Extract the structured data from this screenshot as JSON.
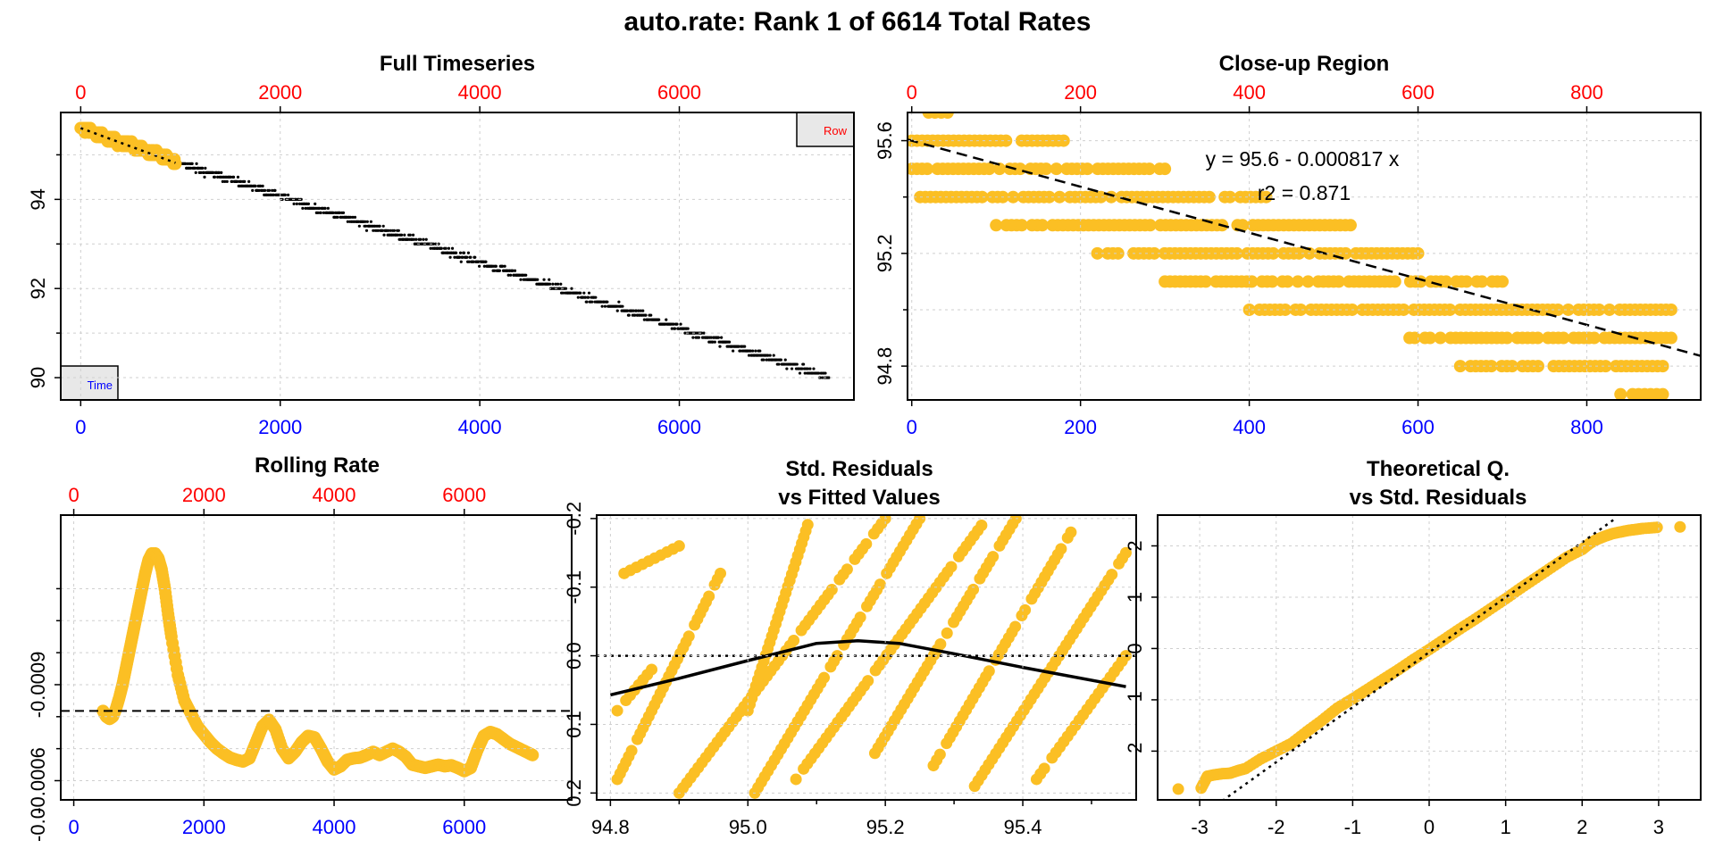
{
  "title": "auto.rate: Rank 1 of 6614 Total Rates",
  "colors": {
    "points": "#FBBF24",
    "axis_bottom": "#0000FF",
    "axis_top": "#FF0000",
    "frame": "#000000",
    "grid": "#CFCFCF",
    "label_box_fill": "#E8E8E8"
  },
  "chart_data": [
    {
      "id": "full",
      "type": "scatter",
      "title": "Full Timeseries",
      "x_axis": {
        "range": [
          -200,
          7750
        ],
        "ticks": [
          0,
          2000,
          4000,
          6000
        ],
        "color": "blue"
      },
      "x2_axis": {
        "range": [
          -200,
          7750
        ],
        "ticks": [
          0,
          2000,
          4000,
          6000
        ],
        "color": "red"
      },
      "y_axis": {
        "range": [
          89.5,
          95.95
        ],
        "ticks": [
          90,
          92,
          94
        ],
        "minor_ticks": [
          91,
          93,
          95
        ]
      },
      "series": [
        {
          "kind": "points",
          "color": "black",
          "x_range": [
            950,
            7500
          ],
          "y_start": 94.85,
          "y_end": 90.0,
          "noise": 0.13
        },
        {
          "kind": "points",
          "color": "orange",
          "x_range": [
            0,
            950
          ],
          "y_start": 95.6,
          "y_end": 94.85,
          "noise": 0.1
        }
      ],
      "fit_line": {
        "x": [
          0,
          950
        ],
        "y": [
          95.6,
          94.82
        ],
        "style": "dotted"
      },
      "corner_labels": {
        "top_right": "Row",
        "bottom_left": "Time"
      },
      "grid": true
    },
    {
      "id": "closeup",
      "type": "scatter",
      "title": "Close-up Region",
      "x_axis": {
        "range": [
          -5,
          935
        ],
        "ticks": [
          0,
          200,
          400,
          600,
          800
        ],
        "color": "blue"
      },
      "x2_axis": {
        "range": [
          -5,
          935
        ],
        "ticks": [
          0,
          200,
          400,
          600,
          800
        ],
        "color": "red"
      },
      "y_axis": {
        "range": [
          94.68,
          95.7
        ],
        "ticks": [
          94.8,
          95.2,
          95.6
        ],
        "minor_ticks": [
          95.0,
          95.4
        ]
      },
      "levels": [
        {
          "y": 95.7,
          "x": [
            20,
            50
          ]
        },
        {
          "y": 95.6,
          "x": [
            0,
            180
          ]
        },
        {
          "y": 95.5,
          "x": [
            0,
            300
          ]
        },
        {
          "y": 95.4,
          "x": [
            10,
            420
          ]
        },
        {
          "y": 95.3,
          "x": [
            100,
            520
          ]
        },
        {
          "y": 95.2,
          "x": [
            220,
            600
          ]
        },
        {
          "y": 95.1,
          "x": [
            300,
            700
          ]
        },
        {
          "y": 95.0,
          "x": [
            400,
            900
          ]
        },
        {
          "y": 94.9,
          "x": [
            590,
            900
          ]
        },
        {
          "y": 94.8,
          "x": [
            650,
            890
          ]
        },
        {
          "y": 94.7,
          "x": [
            840,
            890
          ]
        }
      ],
      "fit_line": {
        "intercept": 95.6,
        "slope": -0.000817,
        "style": "dashed"
      },
      "annotations": [
        "y = 95.6 - 0.000817 x",
        "r2 = 0.871"
      ],
      "grid": true
    },
    {
      "id": "rolling",
      "type": "line",
      "title": "Rolling Rate",
      "x_axis": {
        "range": [
          -200,
          7650
        ],
        "ticks": [
          0,
          2000,
          4000,
          6000
        ],
        "color": "blue"
      },
      "x2_axis": {
        "range": [
          -200,
          7650
        ],
        "ticks": [
          0,
          2000,
          4000,
          6000
        ],
        "color": "red"
      },
      "y_axis": {
        "range": [
          -0.00143,
          -0.00054
        ],
        "reversed": true,
        "ticks": [
          -0.0009,
          -0.0006
        ],
        "tick_labels": [
          "-0.0009",
          "-0.0006"
        ],
        "minor_ticks": [
          -0.0012,
          -0.0011,
          -0.001,
          -0.0008,
          -0.0007
        ],
        "bottom_label": "-0.0"
      },
      "x": [
        450,
        500,
        550,
        600,
        650,
        700,
        750,
        800,
        850,
        900,
        950,
        1000,
        1050,
        1100,
        1150,
        1200,
        1250,
        1300,
        1350,
        1400,
        1450,
        1500,
        1600,
        1700,
        1800,
        1900,
        2000,
        2100,
        2200,
        2300,
        2400,
        2500,
        2600,
        2700,
        2800,
        2900,
        3000,
        3100,
        3200,
        3300,
        3400,
        3500,
        3600,
        3700,
        3800,
        3900,
        4000,
        4100,
        4200,
        4300,
        4400,
        4500,
        4600,
        4700,
        4800,
        4900,
        5000,
        5100,
        5200,
        5300,
        5400,
        5500,
        5600,
        5700,
        5800,
        5900,
        6000,
        6100,
        6200,
        6300,
        6400,
        6500,
        6600,
        6700,
        6800,
        6900,
        7000,
        7050
      ],
      "values": [
        -0.000818,
        -0.0008,
        -0.000793,
        -0.0008,
        -0.000825,
        -0.00086,
        -0.0009,
        -0.00095,
        -0.001,
        -0.00105,
        -0.0011,
        -0.00115,
        -0.0012,
        -0.00125,
        -0.00129,
        -0.00131,
        -0.00131,
        -0.001295,
        -0.00126,
        -0.0012,
        -0.00112,
        -0.00105,
        -0.00093,
        -0.00085,
        -0.00081,
        -0.00077,
        -0.000745,
        -0.00072,
        -0.0007,
        -0.000685,
        -0.000672,
        -0.000665,
        -0.00066,
        -0.00067,
        -0.00072,
        -0.00077,
        -0.00079,
        -0.00076,
        -0.0007,
        -0.00067,
        -0.00069,
        -0.00072,
        -0.00074,
        -0.000735,
        -0.0007,
        -0.00066,
        -0.000635,
        -0.000645,
        -0.000665,
        -0.00067,
        -0.000672,
        -0.00068,
        -0.00069,
        -0.00068,
        -0.00069,
        -0.0007,
        -0.00069,
        -0.000675,
        -0.00065,
        -0.000645,
        -0.00064,
        -0.000645,
        -0.00065,
        -0.000645,
        -0.000648,
        -0.00064,
        -0.00063,
        -0.00064,
        -0.000695,
        -0.00074,
        -0.000752,
        -0.000745,
        -0.00073,
        -0.000715,
        -0.000705,
        -0.000695,
        -0.000685,
        -0.00068
      ],
      "reference_line": {
        "y": -0.000818,
        "style": "dashed"
      },
      "grid": true
    },
    {
      "id": "resid",
      "type": "scatter",
      "title": "Std. Residuals\nvs Fitted Values",
      "title_lines": [
        "Std. Residuals",
        "vs Fitted Values"
      ],
      "x_axis": {
        "range": [
          94.78,
          95.565
        ],
        "ticks": [
          94.8,
          95.0,
          95.2,
          95.4
        ],
        "tick_labels": [
          "94.8",
          "95.0",
          "95.2",
          "95.4"
        ],
        "minor_ticks": [
          94.9,
          95.1,
          95.3,
          95.5
        ]
      },
      "y_axis": {
        "range": [
          -0.205,
          0.21
        ],
        "reversed": true,
        "ticks": [
          -0.2,
          -0.1,
          0.0,
          0.1,
          0.2
        ],
        "tick_labels": [
          "-0.2",
          "-0.1",
          "0.0",
          "0.1",
          "0.2"
        ]
      },
      "bands": [
        {
          "x": [
            94.81,
            94.96
          ],
          "y": [
            0.18,
            -0.12
          ]
        },
        {
          "x": [
            94.81,
            94.86
          ],
          "y": [
            0.08,
            0.02
          ]
        },
        {
          "x": [
            94.82,
            94.9
          ],
          "y": [
            -0.12,
            -0.16
          ]
        },
        {
          "x": [
            94.9,
            95.2
          ],
          "y": [
            0.2,
            -0.2
          ]
        },
        {
          "x": [
            95.0,
            95.09
          ],
          "y": [
            0.08,
            -0.2
          ]
        },
        {
          "x": [
            95.01,
            95.25
          ],
          "y": [
            0.2,
            -0.2
          ]
        },
        {
          "x": [
            95.07,
            95.34
          ],
          "y": [
            0.18,
            -0.19
          ]
        },
        {
          "x": [
            95.18,
            95.39
          ],
          "y": [
            0.15,
            -0.2
          ]
        },
        {
          "x": [
            95.27,
            95.47
          ],
          "y": [
            0.16,
            -0.18
          ]
        },
        {
          "x": [
            95.33,
            95.55
          ],
          "y": [
            0.19,
            -0.15
          ]
        },
        {
          "x": [
            95.42,
            95.55
          ],
          "y": [
            0.18,
            0.0
          ]
        }
      ],
      "smooth": {
        "x": [
          94.8,
          94.9,
          95.0,
          95.1,
          95.16,
          95.22,
          95.3,
          95.4,
          95.55
        ],
        "y": [
          0.057,
          0.033,
          0.007,
          -0.018,
          -0.022,
          -0.018,
          -0.003,
          0.017,
          0.045
        ]
      },
      "reference_line": {
        "y": 0.0,
        "style": "dotted"
      },
      "grid": true
    },
    {
      "id": "qq",
      "type": "scatter",
      "title": "Theoretical Q.\nvs Std. Residuals",
      "title_lines": [
        "Theoretical Q.",
        "vs Std. Residuals"
      ],
      "x_axis": {
        "range": [
          -3.55,
          3.55
        ],
        "ticks": [
          -3,
          -2,
          -1,
          0,
          1,
          2,
          3
        ]
      },
      "y_axis": {
        "range": [
          -2.95,
          2.6
        ],
        "ticks": [
          -2,
          -1,
          0,
          1,
          2
        ]
      },
      "qq_points": {
        "x": [
          -3.28,
          -2.98,
          -2.9,
          -2.8,
          -2.7,
          -2.6,
          -2.5,
          -2.4,
          -2.2,
          -2.0,
          -1.8,
          -1.6,
          -1.4,
          -1.2,
          -1.0,
          -0.8,
          -0.6,
          -0.4,
          -0.2,
          0.0,
          0.2,
          0.4,
          0.6,
          0.8,
          1.0,
          1.2,
          1.4,
          1.6,
          1.8,
          2.0,
          2.1,
          2.2,
          2.3,
          2.4,
          2.5,
          2.6,
          2.7,
          2.8,
          2.98,
          3.28
        ],
        "y": [
          -2.74,
          -2.72,
          -2.49,
          -2.46,
          -2.44,
          -2.43,
          -2.38,
          -2.34,
          -2.15,
          -2.0,
          -1.85,
          -1.62,
          -1.4,
          -1.16,
          -0.98,
          -0.79,
          -0.6,
          -0.41,
          -0.21,
          -0.02,
          0.18,
          0.38,
          0.57,
          0.77,
          0.97,
          1.18,
          1.38,
          1.58,
          1.78,
          1.93,
          2.05,
          2.13,
          2.19,
          2.24,
          2.27,
          2.3,
          2.32,
          2.34,
          2.36,
          2.37
        ]
      },
      "qq_line": {
        "x": [
          -2.78,
          2.45
        ],
        "y": [
          -3.05,
          2.55
        ],
        "style": "dotted"
      },
      "grid": true
    }
  ]
}
